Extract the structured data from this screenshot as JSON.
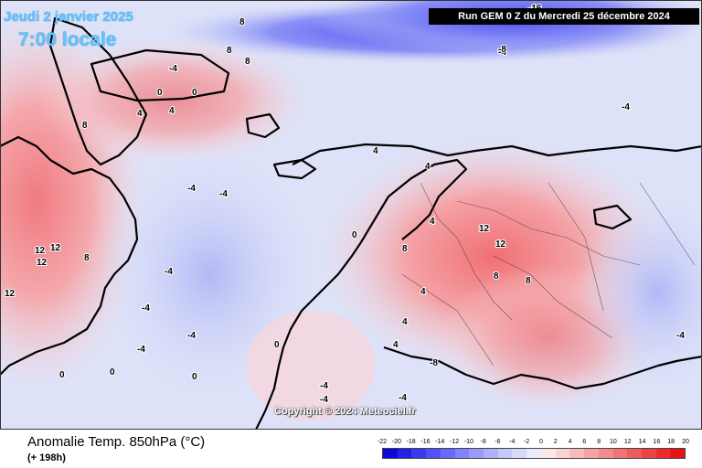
{
  "header": {
    "date": "Jeudi 2 janvier 2025",
    "time": "7:00 locale",
    "run": "Run GEM 0 Z du Mercredi 25 décembre 2024"
  },
  "copyright": "Copyright © 2024 Meteociel.fr",
  "footer": {
    "parameter": "Anomalie Temp. 850hPa (°C)",
    "lead_time": "(+ 198h)"
  },
  "legend": {
    "ticks": [
      "-22",
      "-20",
      "-18",
      "-16",
      "-14",
      "-12",
      "-10",
      "-8",
      "-6",
      "-4",
      "-2",
      "0",
      "2",
      "4",
      "6",
      "8",
      "10",
      "12",
      "14",
      "16",
      "18",
      "20"
    ],
    "colors": [
      "#0a0ad8",
      "#2222e6",
      "#3a3af0",
      "#5252f6",
      "#6a6afa",
      "#8282fc",
      "#9a9afc",
      "#b0b0fb",
      "#c4c8fa",
      "#d6daf8",
      "#e8ecfa",
      "#fae8e8",
      "#f8d4d4",
      "#f6bcbc",
      "#f4a4a4",
      "#f28c8c",
      "#f07474",
      "#ee5c5c",
      "#ec4444",
      "#ea2c2c",
      "#e81414"
    ]
  },
  "contour_labels": [
    "8",
    "8",
    "8",
    "-4",
    "0",
    "0",
    "4",
    "4",
    "8",
    "12",
    "12",
    "12",
    "12",
    "8",
    "-4",
    "-4",
    "-4",
    "-4",
    "0",
    "0",
    "4",
    "4",
    "8",
    "12",
    "12",
    "8",
    "8",
    "4",
    "4",
    "4",
    "-4",
    "-4",
    "-8",
    "-16",
    "-4",
    "0",
    "4",
    "-4",
    "-4",
    "-4",
    "0",
    "0",
    "-4",
    "-4",
    "-8"
  ]
}
